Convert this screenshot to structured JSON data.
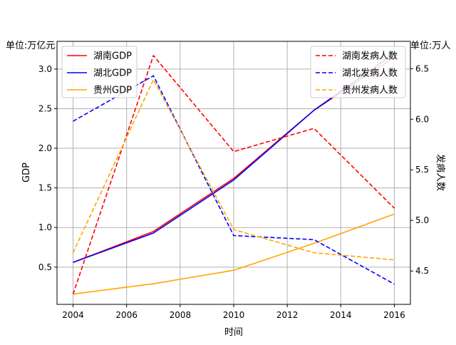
{
  "chart_data": {
    "type": "line",
    "x": [
      2004,
      2007,
      2010,
      2013,
      2016
    ],
    "xlabel": "时间",
    "xticks": [
      2004,
      2006,
      2008,
      2010,
      2012,
      2014,
      2016
    ],
    "xlim": [
      2003.4,
      2016.6
    ],
    "left_axis": {
      "label": "GDP",
      "unit_label": "单位:万亿元",
      "ylim": [
        0.03,
        3.35
      ],
      "ticks": [
        0.5,
        1.0,
        1.5,
        2.0,
        2.5,
        3.0
      ],
      "tick_labels": [
        "0.5",
        "1.0",
        "1.5",
        "2.0",
        "2.5",
        "3.0"
      ]
    },
    "right_axis": {
      "label": "发病人数",
      "unit_label": "单位:万人",
      "ylim": [
        4.17,
        6.77
      ],
      "ticks": [
        4.5,
        5.0,
        5.5,
        6.0,
        6.5
      ],
      "tick_labels": [
        "4.5",
        "5.0",
        "5.5",
        "6.0",
        "6.5"
      ]
    },
    "grid": true,
    "legend_left": "top-left",
    "legend_right": "top-right",
    "series": [
      {
        "name": "湖南GDP",
        "axis": "left",
        "style": "solid",
        "color": "#ff0000",
        "values": [
          0.56,
          0.95,
          1.62,
          2.48,
          3.15
        ]
      },
      {
        "name": "湖北GDP",
        "axis": "left",
        "style": "solid",
        "color": "#0000ff",
        "values": [
          0.56,
          0.93,
          1.6,
          2.48,
          3.2
        ]
      },
      {
        "name": "贵州GDP",
        "axis": "left",
        "style": "solid",
        "color": "#ffa500",
        "values": [
          0.16,
          0.29,
          0.46,
          0.8,
          1.17
        ]
      },
      {
        "name": "湖南发病人数",
        "axis": "right",
        "style": "dashed",
        "color": "#ff0000",
        "values": [
          4.27,
          6.63,
          5.68,
          5.91,
          5.12
        ]
      },
      {
        "name": "湖北发病人数",
        "axis": "right",
        "style": "dashed",
        "color": "#0000ff",
        "values": [
          5.98,
          6.43,
          4.85,
          4.81,
          4.37
        ]
      },
      {
        "name": "贵州发病人数",
        "axis": "right",
        "style": "dashed",
        "color": "#ffa500",
        "values": [
          4.68,
          6.39,
          4.91,
          4.68,
          4.61
        ]
      }
    ]
  }
}
